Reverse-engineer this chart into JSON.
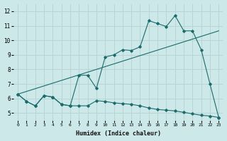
{
  "xlabel": "Humidex (Indice chaleur)",
  "bg_color": "#cce8e8",
  "grid_color": "#b8d4d4",
  "line_color": "#1a6b6b",
  "xlim": [
    -0.5,
    23.5
  ],
  "ylim": [
    4.5,
    12.5
  ],
  "xtick_labels": [
    "0",
    "1",
    "2",
    "3",
    "4",
    "5",
    "6",
    "7",
    "8",
    "9",
    "10",
    "11",
    "12",
    "13",
    "14",
    "15",
    "16",
    "17",
    "18",
    "19",
    "20",
    "21",
    "22",
    "23"
  ],
  "ytick_labels": [
    "5",
    "6",
    "7",
    "8",
    "9",
    "10",
    "11",
    "12"
  ],
  "ytick_vals": [
    5,
    6,
    7,
    8,
    9,
    10,
    11,
    12
  ],
  "series1_x": [
    0,
    1,
    2,
    3,
    4,
    5,
    6,
    7,
    8,
    9,
    10,
    11,
    12,
    13,
    14,
    15,
    16,
    17,
    18,
    19,
    20,
    21,
    22,
    23
  ],
  "series1_y": [
    6.3,
    5.8,
    5.5,
    6.2,
    6.1,
    5.6,
    5.5,
    5.5,
    5.5,
    5.85,
    5.8,
    5.7,
    5.65,
    5.6,
    5.5,
    5.35,
    5.25,
    5.2,
    5.15,
    5.05,
    4.95,
    4.85,
    4.8,
    4.7
  ],
  "series2_x": [
    0,
    1,
    2,
    3,
    4,
    5,
    6,
    7,
    8,
    9,
    10,
    11,
    12,
    13,
    14,
    15,
    16,
    17,
    18,
    19,
    20,
    21,
    22,
    23
  ],
  "series2_y": [
    6.3,
    5.8,
    5.5,
    6.2,
    6.1,
    5.6,
    5.5,
    7.6,
    7.6,
    6.7,
    8.85,
    9.0,
    9.35,
    9.3,
    9.55,
    11.35,
    11.15,
    10.95,
    11.7,
    10.65,
    10.65,
    9.35,
    7.0,
    4.7
  ],
  "series3_x": [
    0,
    23
  ],
  "series3_y": [
    6.3,
    10.65
  ]
}
